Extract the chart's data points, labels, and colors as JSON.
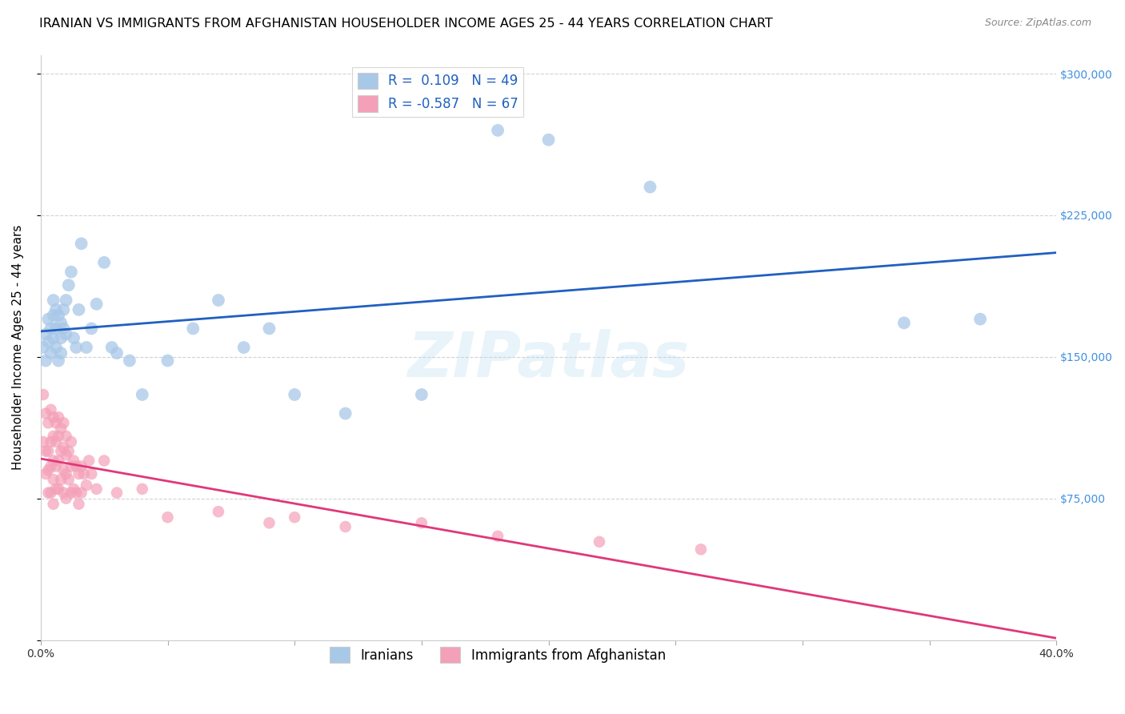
{
  "title": "IRANIAN VS IMMIGRANTS FROM AFGHANISTAN HOUSEHOLDER INCOME AGES 25 - 44 YEARS CORRELATION CHART",
  "source": "Source: ZipAtlas.com",
  "ylabel": "Householder Income Ages 25 - 44 years",
  "xlim": [
    0,
    0.4
  ],
  "ylim": [
    0,
    310000
  ],
  "yticks": [
    0,
    75000,
    150000,
    225000,
    300000
  ],
  "ytick_labels_right": [
    "",
    "$75,000",
    "$150,000",
    "$225,000",
    "$300,000"
  ],
  "xticks": [
    0.0,
    0.05,
    0.1,
    0.15,
    0.2,
    0.25,
    0.3,
    0.35,
    0.4
  ],
  "xtick_labels": [
    "0.0%",
    "",
    "",
    "",
    "",
    "",
    "",
    "",
    "40.0%"
  ],
  "color_iranian": "#a8c8e8",
  "color_afghanistan": "#f4a0b8",
  "color_line_iranian": "#2060c0",
  "color_line_afghanistan": "#e03878",
  "color_ytick_labels": "#4090e0",
  "background_color": "#ffffff",
  "grid_color": "#c8c8c8",
  "iranians_x": [
    0.001,
    0.002,
    0.002,
    0.003,
    0.003,
    0.004,
    0.004,
    0.005,
    0.005,
    0.005,
    0.006,
    0.006,
    0.006,
    0.007,
    0.007,
    0.008,
    0.008,
    0.008,
    0.009,
    0.009,
    0.01,
    0.01,
    0.011,
    0.012,
    0.013,
    0.014,
    0.015,
    0.016,
    0.018,
    0.02,
    0.022,
    0.025,
    0.028,
    0.03,
    0.035,
    0.04,
    0.05,
    0.06,
    0.07,
    0.08,
    0.09,
    0.1,
    0.12,
    0.15,
    0.18,
    0.2,
    0.24,
    0.34,
    0.37
  ],
  "iranians_y": [
    155000,
    162000,
    148000,
    158000,
    170000,
    152000,
    165000,
    180000,
    160000,
    172000,
    155000,
    165000,
    175000,
    148000,
    172000,
    160000,
    152000,
    168000,
    175000,
    165000,
    162000,
    180000,
    188000,
    195000,
    160000,
    155000,
    175000,
    210000,
    155000,
    165000,
    178000,
    200000,
    155000,
    152000,
    148000,
    130000,
    148000,
    165000,
    180000,
    155000,
    165000,
    130000,
    120000,
    130000,
    270000,
    265000,
    240000,
    168000,
    170000
  ],
  "afghan_x": [
    0.001,
    0.001,
    0.002,
    0.002,
    0.002,
    0.003,
    0.003,
    0.003,
    0.003,
    0.004,
    0.004,
    0.004,
    0.004,
    0.005,
    0.005,
    0.005,
    0.005,
    0.005,
    0.006,
    0.006,
    0.006,
    0.006,
    0.007,
    0.007,
    0.007,
    0.007,
    0.008,
    0.008,
    0.008,
    0.009,
    0.009,
    0.009,
    0.009,
    0.01,
    0.01,
    0.01,
    0.01,
    0.011,
    0.011,
    0.012,
    0.012,
    0.012,
    0.013,
    0.013,
    0.014,
    0.014,
    0.015,
    0.015,
    0.016,
    0.016,
    0.017,
    0.018,
    0.019,
    0.02,
    0.022,
    0.025,
    0.03,
    0.04,
    0.05,
    0.07,
    0.09,
    0.1,
    0.12,
    0.15,
    0.18,
    0.22,
    0.26
  ],
  "afghan_y": [
    130000,
    105000,
    120000,
    100000,
    88000,
    115000,
    100000,
    90000,
    78000,
    122000,
    105000,
    92000,
    78000,
    118000,
    108000,
    95000,
    85000,
    72000,
    115000,
    105000,
    92000,
    80000,
    118000,
    108000,
    95000,
    80000,
    112000,
    100000,
    85000,
    115000,
    102000,
    90000,
    78000,
    108000,
    98000,
    88000,
    75000,
    100000,
    85000,
    105000,
    92000,
    78000,
    95000,
    80000,
    92000,
    78000,
    88000,
    72000,
    92000,
    78000,
    88000,
    82000,
    95000,
    88000,
    80000,
    95000,
    78000,
    80000,
    65000,
    68000,
    62000,
    65000,
    60000,
    62000,
    55000,
    52000,
    48000
  ],
  "watermark_text": "ZIPatlas",
  "title_fontsize": 11.5,
  "axis_label_fontsize": 11,
  "tick_fontsize": 10,
  "legend_fontsize": 12
}
